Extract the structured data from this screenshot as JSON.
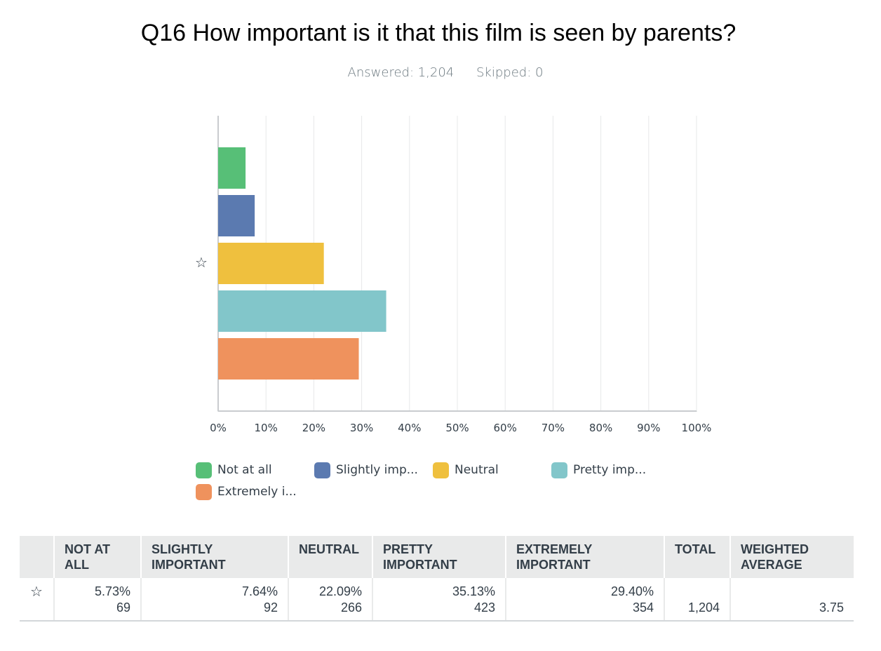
{
  "question": {
    "title": "Q16 How important is it that this film is seen by parents?",
    "answered_label": "Answered: 1,204",
    "skipped_label": "Skipped: 0"
  },
  "chart_data": {
    "type": "bar",
    "orientation": "horizontal",
    "categories": [
      "Not at all",
      "Slightly important",
      "Neutral",
      "Pretty important",
      "Extremely important"
    ],
    "values": [
      5.73,
      7.64,
      22.09,
      35.13,
      29.4
    ],
    "colors": [
      "#57bf77",
      "#5b7ab0",
      "#efc03e",
      "#82c6ca",
      "#ef925d"
    ],
    "xlim": [
      0,
      100
    ],
    "xticks": [
      "0%",
      "10%",
      "20%",
      "30%",
      "40%",
      "50%",
      "60%",
      "70%",
      "80%",
      "90%",
      "100%"
    ],
    "grid": true,
    "legend": [
      "Not at all",
      "Slightly imp...",
      "Neutral",
      "Pretty imp...",
      "Extremely i..."
    ],
    "legend_placement": "bottom",
    "marker_icon": "star-outline-icon"
  },
  "table": {
    "headers": [
      "NOT AT ALL",
      "SLIGHTLY IMPORTANT",
      "NEUTRAL",
      "PRETTY IMPORTANT",
      "EXTREMELY IMPORTANT",
      "TOTAL",
      "WEIGHTED AVERAGE"
    ],
    "row": {
      "icon": "star-outline-icon",
      "percents": [
        "5.73%",
        "7.64%",
        "22.09%",
        "35.13%",
        "29.40%"
      ],
      "counts": [
        "69",
        "92",
        "266",
        "423",
        "354"
      ],
      "total": "1,204",
      "weighted_average": "3.75"
    }
  }
}
